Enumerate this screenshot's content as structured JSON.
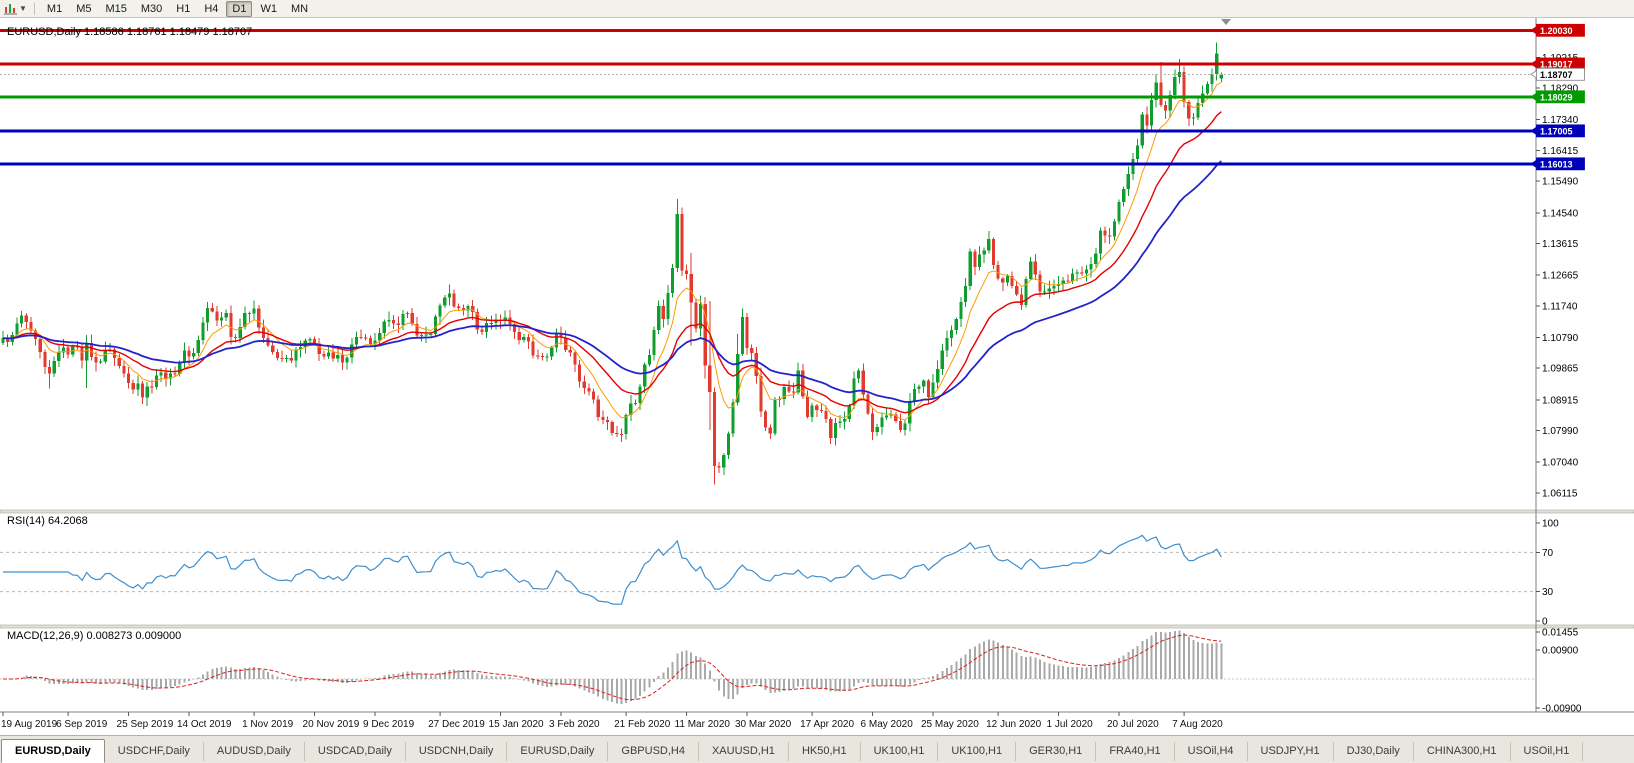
{
  "toolbar": {
    "timeframes": [
      "M1",
      "M5",
      "M15",
      "M30",
      "H1",
      "H4",
      "D1",
      "W1",
      "MN"
    ],
    "active_timeframe": "D1"
  },
  "chart": {
    "title": "EURUSD,Daily 1.18586 1.18761 1.18479 1.18707",
    "symbol": "EURUSD",
    "period": "Daily",
    "ohlc_display": {
      "open": "1.18586",
      "high": "1.18761",
      "low": "1.18479",
      "close": "1.18707"
    }
  },
  "chart_data": {
    "type": "candlestick",
    "title": "EURUSD,Daily",
    "candles_count": 263,
    "price_axis": {
      "top": 1.204,
      "bottom": 1.056,
      "ticks": [
        "1.19215",
        "1.18290",
        "1.17340",
        "1.16415",
        "1.15490",
        "1.14540",
        "1.13615",
        "1.12665",
        "1.11740",
        "1.10790",
        "1.09865",
        "1.08915",
        "1.07990",
        "1.07040",
        "1.06115"
      ]
    },
    "x_labels": [
      {
        "label": "19 Aug 2019",
        "index": 0
      },
      {
        "label": "6 Sep 2019",
        "index": 14
      },
      {
        "label": "25 Sep 2019",
        "index": 27
      },
      {
        "label": "14 Oct 2019",
        "index": 40
      },
      {
        "label": "1 Nov 2019",
        "index": 54
      },
      {
        "label": "20 Nov 2019",
        "index": 67
      },
      {
        "label": "9 Dec 2019",
        "index": 80
      },
      {
        "label": "27 Dec 2019",
        "index": 94
      },
      {
        "label": "15 Jan 2020",
        "index": 107
      },
      {
        "label": "3 Feb 2020",
        "index": 120
      },
      {
        "label": "21 Feb 2020",
        "index": 134
      },
      {
        "label": "11 Mar 2020",
        "index": 147
      },
      {
        "label": "30 Mar 2020",
        "index": 160
      },
      {
        "label": "17 Apr 2020",
        "index": 174
      },
      {
        "label": "6 May 2020",
        "index": 187
      },
      {
        "label": "25 May 2020",
        "index": 200
      },
      {
        "label": "12 Jun 2020",
        "index": 214
      },
      {
        "label": "1 Jul 2020",
        "index": 227
      },
      {
        "label": "20 Jul 2020",
        "index": 240
      },
      {
        "label": "7 Aug 2020",
        "index": 254
      }
    ],
    "levels": [
      {
        "price": 1.2003,
        "label": "1.20030",
        "color": "#cc0000",
        "type": "resistance"
      },
      {
        "price": 1.19017,
        "label": "1.19017",
        "color": "#cc0000",
        "type": "resistance"
      },
      {
        "price": 1.18029,
        "label": "1.18029",
        "color": "#009b00",
        "type": "support"
      },
      {
        "price": 1.17005,
        "label": "1.17005",
        "color": "#0000bb",
        "type": "support"
      },
      {
        "price": 1.16013,
        "label": "1.16013",
        "color": "#0000bb",
        "type": "support"
      }
    ],
    "current_price": {
      "price": 1.18707,
      "label": "1.18707"
    },
    "last_candle": {
      "open": 1.18586,
      "high": 1.18761,
      "low": 1.18479,
      "close": 1.18707
    },
    "close_anchors": [
      [
        0,
        1.1077
      ],
      [
        2,
        1.1086
      ],
      [
        4,
        1.1145
      ],
      [
        6,
        1.11
      ],
      [
        9,
        1.099
      ],
      [
        10,
        1.0971
      ],
      [
        12,
        1.1034
      ],
      [
        14,
        1.1028
      ],
      [
        16,
        1.1049
      ],
      [
        17,
        1.101
      ],
      [
        18,
        1.1062
      ],
      [
        20,
        1.1003
      ],
      [
        22,
        1.1042
      ],
      [
        24,
        1.1017
      ],
      [
        25,
        1.0993
      ],
      [
        27,
        1.0942
      ],
      [
        29,
        1.094
      ],
      [
        30,
        1.0899
      ],
      [
        31,
        1.0932
      ],
      [
        33,
        1.0965
      ],
      [
        36,
        1.097
      ],
      [
        38,
        1.1003
      ],
      [
        39,
        1.104
      ],
      [
        41,
        1.1032
      ],
      [
        44,
        1.1167
      ],
      [
        46,
        1.113
      ],
      [
        48,
        1.1152
      ],
      [
        49,
        1.108
      ],
      [
        51,
        1.111
      ],
      [
        52,
        1.1152
      ],
      [
        54,
        1.1166
      ],
      [
        56,
        1.1077
      ],
      [
        59,
        1.1017
      ],
      [
        62,
        1.1009
      ],
      [
        64,
        1.1051
      ],
      [
        66,
        1.1074
      ],
      [
        69,
        1.1021
      ],
      [
        71,
        1.1015
      ],
      [
        74,
        1.1018
      ],
      [
        76,
        1.1081
      ],
      [
        79,
        1.106
      ],
      [
        81,
        1.1093
      ],
      [
        83,
        1.1131
      ],
      [
        84,
        1.1121
      ],
      [
        86,
        1.1149
      ],
      [
        88,
        1.112
      ],
      [
        90,
        1.1087
      ],
      [
        92,
        1.1089
      ],
      [
        94,
        1.1175
      ],
      [
        96,
        1.1212
      ],
      [
        97,
        1.1172
      ],
      [
        99,
        1.116
      ],
      [
        101,
        1.1155
      ],
      [
        102,
        1.1103
      ],
      [
        104,
        1.1122
      ],
      [
        106,
        1.1132
      ],
      [
        108,
        1.1139
      ],
      [
        110,
        1.1095
      ],
      [
        112,
        1.108
      ],
      [
        114,
        1.1025
      ],
      [
        116,
        1.102
      ],
      [
        117,
        1.1022
      ],
      [
        119,
        1.1093
      ],
      [
        121,
        1.1042
      ],
      [
        123,
        1.0998
      ],
      [
        124,
        1.0946
      ],
      [
        126,
        1.0917
      ],
      [
        128,
        1.084
      ],
      [
        129,
        1.0831
      ],
      [
        131,
        1.0792
      ],
      [
        133,
        1.0788
      ],
      [
        134,
        1.0846
      ],
      [
        136,
        1.0882
      ],
      [
        138,
        1.0998
      ],
      [
        139,
        1.1026
      ],
      [
        141,
        1.1173
      ],
      [
        142,
        1.1134
      ],
      [
        144,
        1.1288
      ],
      [
        145,
        1.145
      ],
      [
        146,
        1.1281
      ],
      [
        147,
        1.127
      ],
      [
        148,
        1.1184
      ],
      [
        149,
        1.1106
      ],
      [
        150,
        1.118
      ],
      [
        151,
        1.0995
      ],
      [
        152,
        1.0915
      ],
      [
        153,
        1.0692
      ],
      [
        154,
        1.0688
      ],
      [
        155,
        1.0726
      ],
      [
        156,
        1.079
      ],
      [
        157,
        1.0883
      ],
      [
        158,
        1.103
      ],
      [
        159,
        1.1141
      ],
      [
        160,
        1.1047
      ],
      [
        161,
        1.1033
      ],
      [
        162,
        1.0963
      ],
      [
        163,
        1.0856
      ],
      [
        164,
        1.0808
      ],
      [
        165,
        1.079
      ],
      [
        166,
        1.0891
      ],
      [
        168,
        1.093
      ],
      [
        170,
        1.0913
      ],
      [
        171,
        1.098
      ],
      [
        173,
        1.084
      ],
      [
        174,
        1.0875
      ],
      [
        176,
        1.0858
      ],
      [
        178,
        1.0777
      ],
      [
        179,
        1.0821
      ],
      [
        181,
        1.0833
      ],
      [
        183,
        1.0955
      ],
      [
        184,
        1.098
      ],
      [
        185,
        1.0907
      ],
      [
        187,
        1.0795
      ],
      [
        189,
        1.0839
      ],
      [
        191,
        1.0847
      ],
      [
        193,
        1.0801
      ],
      [
        194,
        1.082
      ],
      [
        196,
        1.0924
      ],
      [
        198,
        1.0949
      ],
      [
        199,
        1.09
      ],
      [
        201,
        1.0984
      ],
      [
        203,
        1.1077
      ],
      [
        204,
        1.1101
      ],
      [
        205,
        1.1134
      ],
      [
        207,
        1.1234
      ],
      [
        208,
        1.1338
      ],
      [
        209,
        1.1291
      ],
      [
        211,
        1.1341
      ],
      [
        212,
        1.1375
      ],
      [
        213,
        1.1297
      ],
      [
        214,
        1.1256
      ],
      [
        216,
        1.1264
      ],
      [
        219,
        1.1177
      ],
      [
        221,
        1.1308
      ],
      [
        223,
        1.1218
      ],
      [
        224,
        1.1218
      ],
      [
        226,
        1.1234
      ],
      [
        228,
        1.125
      ],
      [
        229,
        1.1248
      ],
      [
        231,
        1.1274
      ],
      [
        233,
        1.1284
      ],
      [
        234,
        1.13
      ],
      [
        236,
        1.1401
      ],
      [
        238,
        1.1383
      ],
      [
        239,
        1.1428
      ],
      [
        241,
        1.1526
      ],
      [
        242,
        1.157
      ],
      [
        244,
        1.1656
      ],
      [
        245,
        1.175
      ],
      [
        246,
        1.1716
      ],
      [
        248,
        1.1846
      ],
      [
        249,
        1.1778
      ],
      [
        250,
        1.1762
      ],
      [
        252,
        1.1862
      ],
      [
        253,
        1.1877
      ],
      [
        254,
        1.1787
      ],
      [
        255,
        1.1738
      ],
      [
        256,
        1.174
      ],
      [
        257,
        1.1784
      ],
      [
        258,
        1.1813
      ],
      [
        259,
        1.1842
      ],
      [
        260,
        1.1872
      ],
      [
        261,
        1.1933
      ],
      [
        262,
        1.18707
      ]
    ],
    "wick_overrides": [
      [
        10,
        null,
        1.0926
      ],
      [
        18,
        1.1087,
        1.0927
      ],
      [
        31,
        null,
        1.0879
      ],
      [
        96,
        1.1239,
        null
      ],
      [
        133,
        null,
        1.0778
      ],
      [
        145,
        1.1495,
        null
      ],
      [
        148,
        1.1333,
        1.1055
      ],
      [
        151,
        null,
        1.0955
      ],
      [
        152,
        1.1189,
        1.0801
      ],
      [
        153,
        null,
        1.0636
      ],
      [
        158,
        1.109,
        null
      ],
      [
        183,
        1.0972,
        null
      ],
      [
        187,
        null,
        1.0782
      ],
      [
        249,
        1.1908,
        null
      ],
      [
        253,
        1.1916,
        null
      ],
      [
        261,
        1.1966,
        null
      ]
    ],
    "moving_averages": [
      {
        "name": "fast",
        "period": 8,
        "color": "#ff9900",
        "width": 1
      },
      {
        "name": "medium",
        "period": 20,
        "color": "#e60000",
        "width": 1.4
      },
      {
        "name": "slow",
        "period": 40,
        "color": "#2323cc",
        "width": 1.8
      }
    ],
    "colors": {
      "bull": "#0f9d2f",
      "bear": "#e23a2e",
      "background": "#ffffff",
      "histogram": "#a9a9a9",
      "signal": "#dd2222"
    },
    "rsi": {
      "label": "RSI(14) 64.2068",
      "period": 14,
      "value": 64.2068,
      "levels": [
        100,
        70,
        30,
        0
      ],
      "color": "#3f8fce"
    },
    "macd": {
      "label": "MACD(12,26,9) 0.008273 0.009000",
      "fast": 12,
      "slow": 26,
      "signal": 9,
      "macd_value": 0.008273,
      "signal_value": 0.009,
      "axis_labels": [
        "0.01455",
        "0.00900",
        "-0.00900"
      ],
      "range": [
        -0.009,
        0.01455
      ]
    }
  },
  "tabs": {
    "active_index": 0,
    "items": [
      "EURUSD,Daily",
      "USDCHF,Daily",
      "AUDUSD,Daily",
      "USDCAD,Daily",
      "USDCNH,Daily",
      "EURUSD,Daily",
      "GBPUSD,H4",
      "XAUUSD,H1",
      "HK50,H1",
      "UK100,H1",
      "UK100,H1",
      "GER30,H1",
      "FRA40,H1",
      "USOil,H4",
      "USDJPY,H1",
      "DJ30,Daily",
      "CHINA300,H1",
      "USOil,H1"
    ]
  }
}
